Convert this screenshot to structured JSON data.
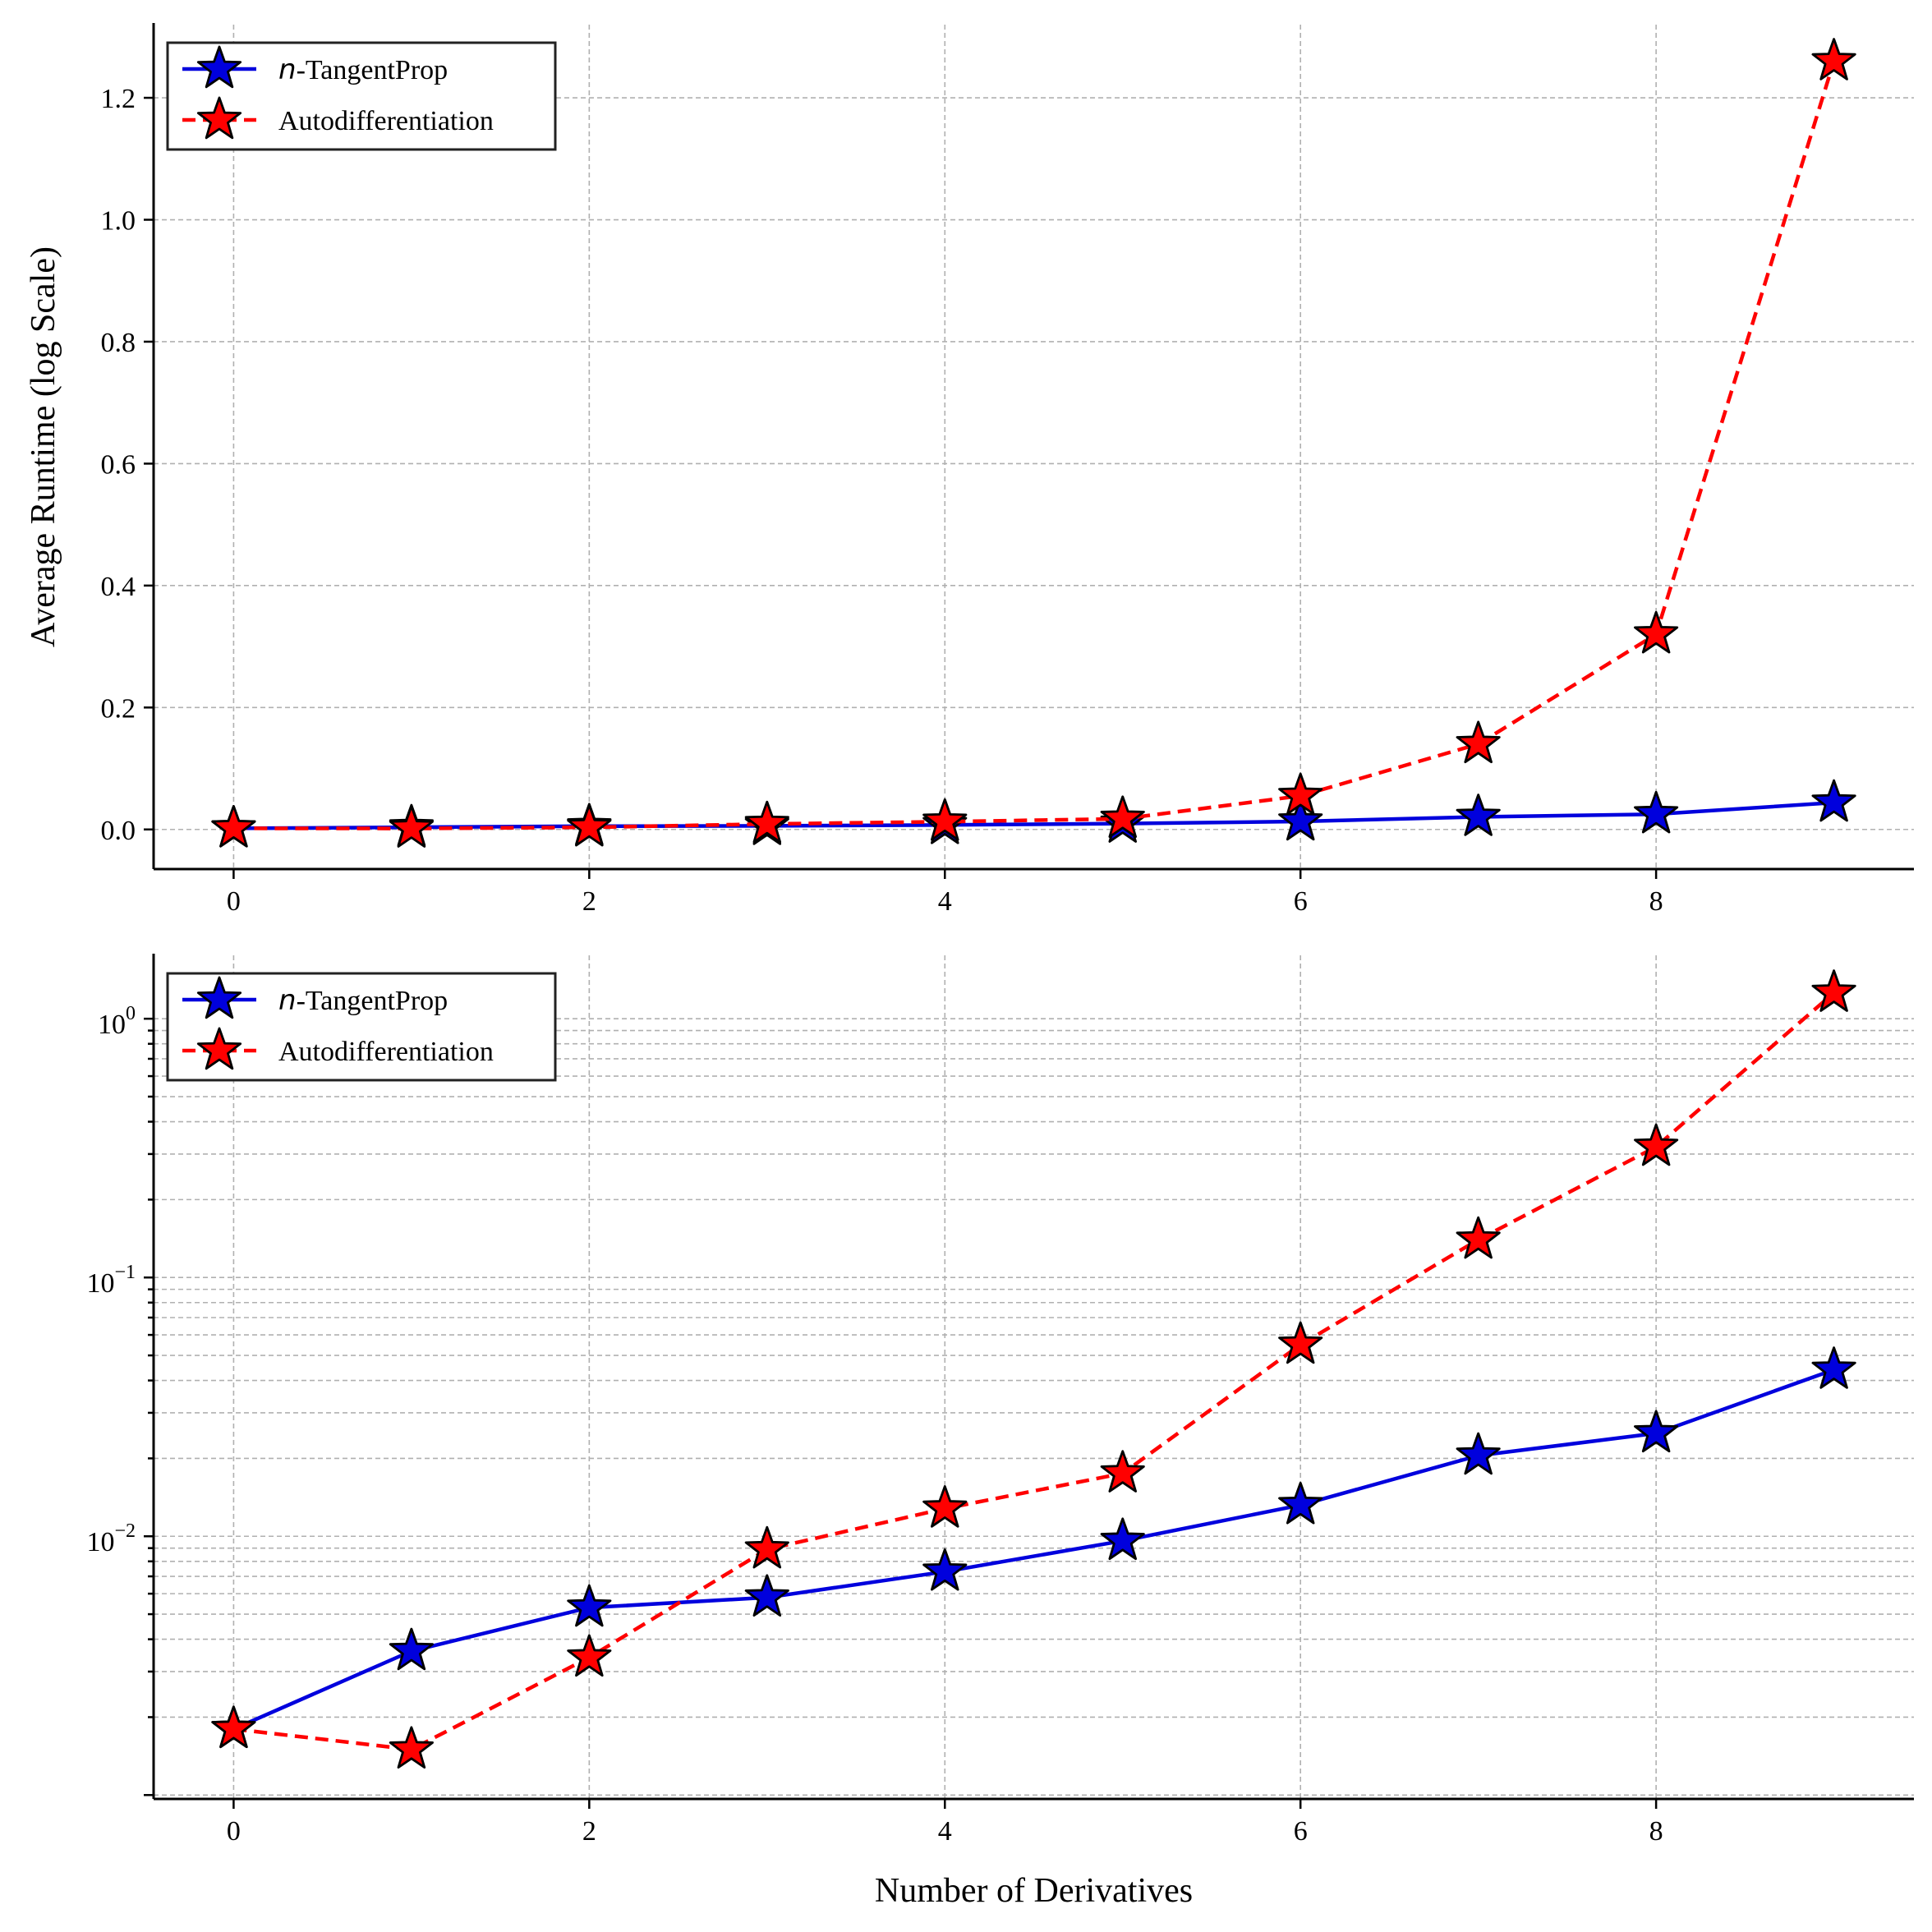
{
  "chart_data": [
    {
      "type": "line",
      "yscale": "linear",
      "x": [
        0,
        1,
        2,
        3,
        4,
        5,
        6,
        7,
        8,
        9
      ],
      "xlim": [
        -0.45,
        9.45
      ],
      "ylim": [
        -0.065,
        1.32
      ],
      "xticks": [
        0,
        2,
        4,
        6,
        8
      ],
      "xtick_labels": [
        "0",
        "2",
        "4",
        "6",
        "8"
      ],
      "yticks": [
        0.0,
        0.2,
        0.4,
        0.6,
        0.8,
        1.0,
        1.2
      ],
      "ytick_labels": [
        "0.0",
        "0.2",
        "0.4",
        "0.6",
        "0.8",
        "1.0",
        "1.2"
      ],
      "ylabel": "Average Runtime (log Scale)",
      "xlabel": "",
      "grid": true,
      "legend_position": "top-left",
      "series": [
        {
          "name_prefix": "n",
          "name_suffix": "-TangentProp",
          "color": "#0000dd",
          "linestyle": "solid",
          "marker": "star",
          "values": [
            0.0018,
            0.0036,
            0.0053,
            0.0058,
            0.0073,
            0.0096,
            0.0132,
            0.0205,
            0.025,
            0.044
          ]
        },
        {
          "name": "Autodifferentiation",
          "color": "#ff0000",
          "linestyle": "dashed",
          "marker": "star",
          "values": [
            0.0018,
            0.0015,
            0.0034,
            0.0089,
            0.0128,
            0.0175,
            0.055,
            0.14,
            0.32,
            1.26
          ]
        }
      ]
    },
    {
      "type": "line",
      "yscale": "log",
      "x": [
        0,
        1,
        2,
        3,
        4,
        5,
        6,
        7,
        8,
        9
      ],
      "xlim": [
        -0.45,
        9.45
      ],
      "ylim_log10": [
        -3.015,
        0.245
      ],
      "xticks": [
        0,
        2,
        4,
        6,
        8
      ],
      "xtick_labels": [
        "0",
        "2",
        "4",
        "6",
        "8"
      ],
      "yticks": [
        0.01,
        0.1,
        1
      ],
      "ytick_labels": [
        {
          "base": "10",
          "exp": "−2"
        },
        {
          "base": "10",
          "exp": "−1"
        },
        {
          "base": "10",
          "exp": "0"
        }
      ],
      "ylabel": "",
      "xlabel": "Number of Derivatives",
      "grid": true,
      "legend_position": "top-left",
      "series": [
        {
          "name_prefix": "n",
          "name_suffix": "-TangentProp",
          "color": "#0000dd",
          "linestyle": "solid",
          "marker": "star",
          "values": [
            0.0018,
            0.0036,
            0.0053,
            0.0058,
            0.0073,
            0.0096,
            0.0132,
            0.0205,
            0.025,
            0.044
          ]
        },
        {
          "name": "Autodifferentiation",
          "color": "#ff0000",
          "linestyle": "dashed",
          "marker": "star",
          "values": [
            0.0018,
            0.0015,
            0.0034,
            0.0089,
            0.0128,
            0.0175,
            0.055,
            0.14,
            0.32,
            1.26
          ]
        }
      ]
    }
  ]
}
